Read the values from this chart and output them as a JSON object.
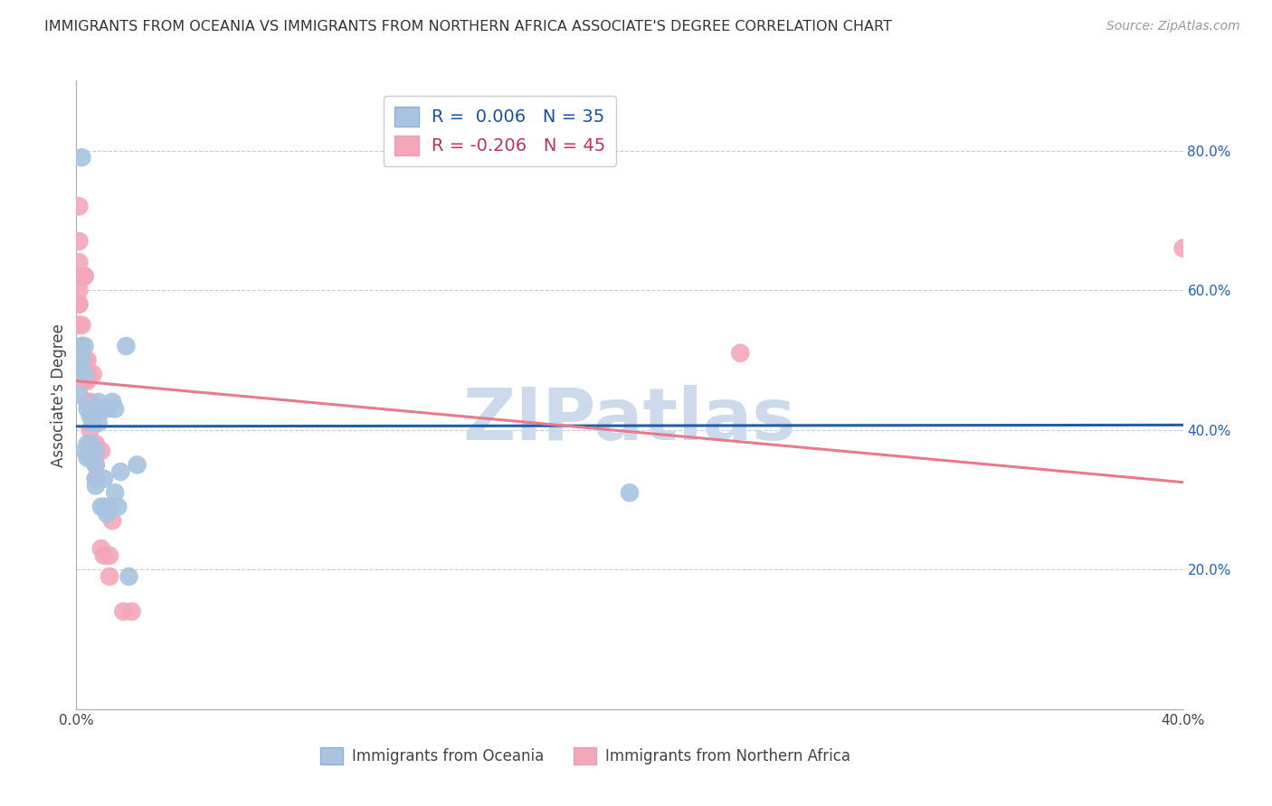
{
  "title": "IMMIGRANTS FROM OCEANIA VS IMMIGRANTS FROM NORTHERN AFRICA ASSOCIATE'S DEGREE CORRELATION CHART",
  "source": "Source: ZipAtlas.com",
  "ylabel": "Associate's Degree",
  "xlim": [
    0.0,
    0.4
  ],
  "ylim": [
    0.0,
    0.9
  ],
  "xticks": [
    0.0,
    0.05,
    0.1,
    0.15,
    0.2,
    0.25,
    0.3,
    0.35,
    0.4
  ],
  "xticklabels": [
    "0.0%",
    "",
    "",
    "",
    "",
    "",
    "",
    "",
    "40.0%"
  ],
  "yticks": [
    0.0,
    0.2,
    0.4,
    0.6,
    0.8
  ],
  "yticklabels": [
    "",
    "20.0%",
    "40.0%",
    "60.0%",
    "80.0%"
  ],
  "grid_yticks": [
    0.2,
    0.4,
    0.6,
    0.8
  ],
  "legend_row1": "R =  0.006   N = 35",
  "legend_row2": "R = -0.206   N = 45",
  "oceania_line": [
    0.0,
    0.405,
    0.4,
    0.407
  ],
  "northern_africa_line": [
    0.0,
    0.47,
    0.4,
    0.325
  ],
  "oceania_scatter": [
    [
      0.001,
      0.49
    ],
    [
      0.001,
      0.45
    ],
    [
      0.002,
      0.52
    ],
    [
      0.002,
      0.5
    ],
    [
      0.002,
      0.79
    ],
    [
      0.003,
      0.52
    ],
    [
      0.003,
      0.48
    ],
    [
      0.003,
      0.37
    ],
    [
      0.004,
      0.43
    ],
    [
      0.004,
      0.38
    ],
    [
      0.004,
      0.36
    ],
    [
      0.005,
      0.42
    ],
    [
      0.005,
      0.38
    ],
    [
      0.006,
      0.41
    ],
    [
      0.007,
      0.37
    ],
    [
      0.007,
      0.35
    ],
    [
      0.007,
      0.33
    ],
    [
      0.007,
      0.32
    ],
    [
      0.008,
      0.41
    ],
    [
      0.008,
      0.44
    ],
    [
      0.009,
      0.29
    ],
    [
      0.01,
      0.33
    ],
    [
      0.01,
      0.29
    ],
    [
      0.011,
      0.43
    ],
    [
      0.011,
      0.28
    ],
    [
      0.012,
      0.29
    ],
    [
      0.013,
      0.44
    ],
    [
      0.014,
      0.43
    ],
    [
      0.014,
      0.31
    ],
    [
      0.015,
      0.29
    ],
    [
      0.016,
      0.34
    ],
    [
      0.018,
      0.52
    ],
    [
      0.019,
      0.19
    ],
    [
      0.022,
      0.35
    ],
    [
      0.2,
      0.31
    ]
  ],
  "northern_africa_scatter": [
    [
      0.001,
      0.72
    ],
    [
      0.001,
      0.67
    ],
    [
      0.001,
      0.64
    ],
    [
      0.001,
      0.62
    ],
    [
      0.001,
      0.6
    ],
    [
      0.001,
      0.58
    ],
    [
      0.001,
      0.58
    ],
    [
      0.001,
      0.55
    ],
    [
      0.002,
      0.55
    ],
    [
      0.002,
      0.52
    ],
    [
      0.002,
      0.5
    ],
    [
      0.002,
      0.5
    ],
    [
      0.002,
      0.49
    ],
    [
      0.003,
      0.62
    ],
    [
      0.003,
      0.62
    ],
    [
      0.003,
      0.5
    ],
    [
      0.003,
      0.48
    ],
    [
      0.003,
      0.48
    ],
    [
      0.003,
      0.47
    ],
    [
      0.004,
      0.5
    ],
    [
      0.004,
      0.48
    ],
    [
      0.004,
      0.47
    ],
    [
      0.004,
      0.44
    ],
    [
      0.005,
      0.44
    ],
    [
      0.005,
      0.4
    ],
    [
      0.005,
      0.38
    ],
    [
      0.005,
      0.36
    ],
    [
      0.006,
      0.48
    ],
    [
      0.006,
      0.43
    ],
    [
      0.007,
      0.43
    ],
    [
      0.007,
      0.38
    ],
    [
      0.007,
      0.35
    ],
    [
      0.007,
      0.33
    ],
    [
      0.008,
      0.43
    ],
    [
      0.009,
      0.37
    ],
    [
      0.009,
      0.23
    ],
    [
      0.01,
      0.22
    ],
    [
      0.01,
      0.43
    ],
    [
      0.012,
      0.22
    ],
    [
      0.012,
      0.19
    ],
    [
      0.013,
      0.27
    ],
    [
      0.017,
      0.14
    ],
    [
      0.02,
      0.14
    ],
    [
      0.24,
      0.51
    ],
    [
      0.4,
      0.66
    ]
  ],
  "oceania_line_color": "#1f5fa6",
  "northern_africa_line_color": "#e87a8d",
  "oceania_dot_color": "#a8c4e0",
  "northern_africa_dot_color": "#f4a7b9",
  "background_color": "#ffffff",
  "watermark": "ZIPatlas",
  "watermark_color": "#ccdaeb"
}
